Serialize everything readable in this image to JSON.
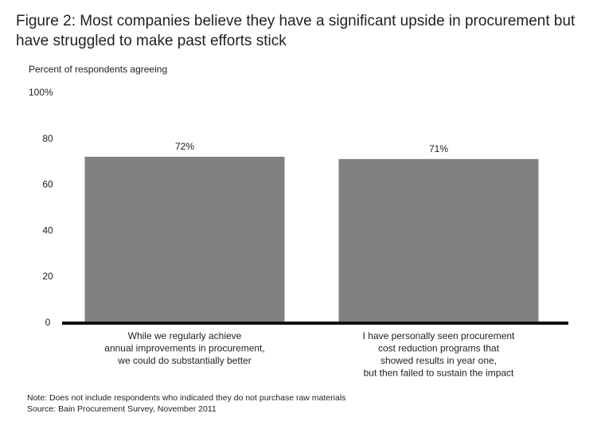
{
  "title": "Figure 2: Most companies believe they have a significant upside in procurement but have struggled to make past efforts stick",
  "ylabel": "Percent of respondents agreeing",
  "notes": {
    "note": "Note: Does not include respondents who indicated they do not purchase raw materials",
    "source": "Source: Bain Procurement Survey, November 2011"
  },
  "chart_data": {
    "type": "bar",
    "title": "Figure 2: Most companies believe they have a significant upside in procurement but have struggled to make past efforts stick",
    "xlabel": "",
    "ylabel": "Percent of respondents agreeing",
    "ylim": [
      0,
      100
    ],
    "yticks": [
      0,
      20,
      40,
      60,
      80,
      100
    ],
    "ytick_labels": [
      "0",
      "20",
      "40",
      "60",
      "80",
      "100%"
    ],
    "grid": false,
    "categories": [
      [
        "While we regularly achieve",
        "annual improvements in procurement,",
        "we could do substantially better"
      ],
      [
        "I have personally seen procurement",
        "cost reduction programs that",
        "showed results in year one,",
        "but then failed to sustain the impact"
      ]
    ],
    "values": [
      72,
      71
    ],
    "data_labels": [
      "72%",
      "71%"
    ],
    "colors": {
      "bar": "#808083",
      "axis": "#111111"
    }
  }
}
